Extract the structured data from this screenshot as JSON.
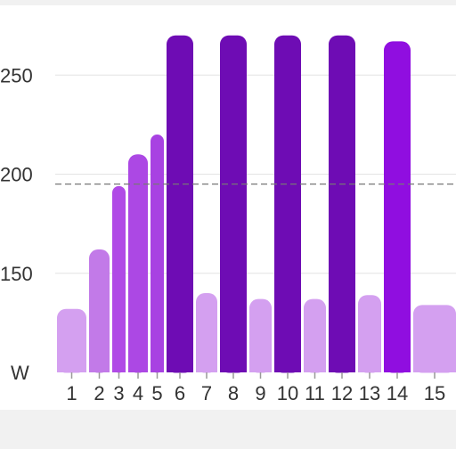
{
  "chart_data": {
    "type": "bar",
    "title": "",
    "xlabel": "",
    "ylabel": "W",
    "categories": [
      "1",
      "2",
      "3",
      "4",
      "5",
      "6",
      "7",
      "8",
      "9",
      "10",
      "11",
      "12",
      "13",
      "14",
      "15"
    ],
    "values": [
      132,
      162,
      194,
      210,
      220,
      270,
      140,
      270,
      137,
      270,
      137,
      270,
      139,
      267,
      134
    ],
    "bar_colors": [
      "#d4a0f0",
      "#c27ae8",
      "#b04ae6",
      "#ac48e4",
      "#a842e2",
      "#6e0cb4",
      "#d4a0f0",
      "#6e0cb4",
      "#d4a0f0",
      "#6e0cb4",
      "#d4a0f0",
      "#6e0cb4",
      "#d4a0f0",
      "#900ee0",
      "#d4a0f0"
    ],
    "yticks": [
      150,
      200,
      250
    ],
    "ylim": [
      100,
      283
    ],
    "reference_line": 195,
    "grid": "horizontal",
    "colors": {
      "gridline": "#e4e4e4",
      "reference_line": "#777777",
      "axis": "#999999",
      "text": "#333333"
    }
  }
}
